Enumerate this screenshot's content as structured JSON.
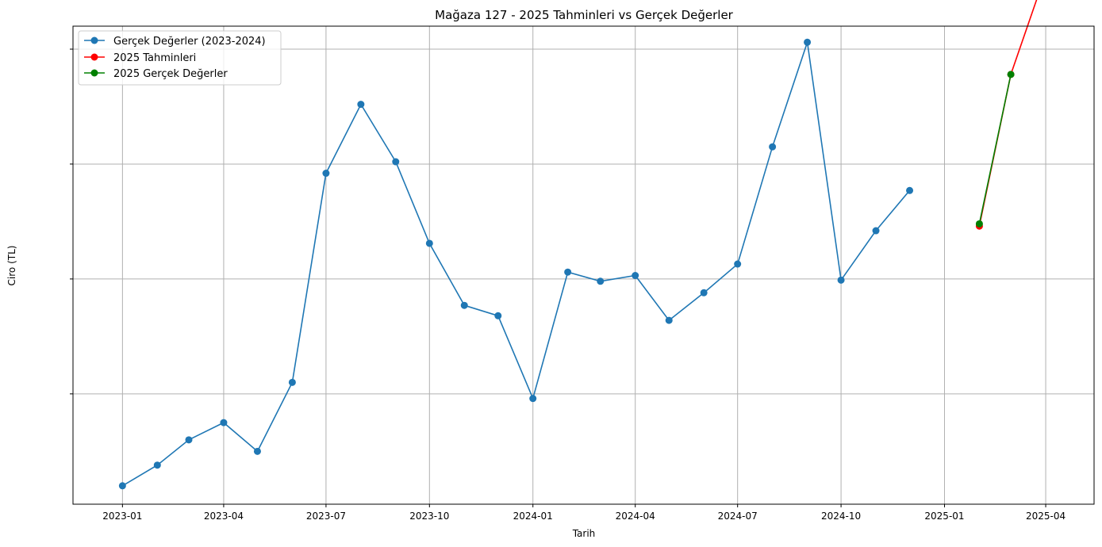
{
  "chart_data": {
    "type": "line",
    "title": "Mağaza 127 - 2025 Tahminleri vs Gerçek Değerler",
    "xlabel": "Tarih",
    "ylabel": "Ciro (TL)",
    "grid": true,
    "legend_position": "top-left",
    "x_ticks": [
      "2023-01",
      "2023-04",
      "2023-07",
      "2023-10",
      "2024-01",
      "2024-04",
      "2024-07",
      "2024-10",
      "2025-01",
      "2025-04"
    ],
    "y_tick_labels_visible": false,
    "y_range": [
      0.02,
      2.1
    ],
    "x_range": [
      "2022-11-18",
      "2025-05-14"
    ],
    "series": [
      {
        "name": "Gerçek Değerler (2023-2024)",
        "color": "#1f77b4",
        "x": [
          "2023-01-01",
          "2023-02-01",
          "2023-03-01",
          "2023-04-01",
          "2023-05-01",
          "2023-06-01",
          "2023-07-01",
          "2023-08-01",
          "2023-09-01",
          "2023-10-01",
          "2023-11-01",
          "2023-12-01",
          "2024-01-01",
          "2024-02-01",
          "2024-03-01",
          "2024-04-01",
          "2024-05-01",
          "2024-06-01",
          "2024-07-01",
          "2024-08-01",
          "2024-09-01",
          "2024-10-01",
          "2024-11-01",
          "2024-12-01"
        ],
        "y": [
          0.1,
          0.19,
          0.3,
          0.375,
          0.25,
          0.55,
          1.46,
          1.76,
          1.51,
          1.155,
          0.885,
          0.84,
          0.48,
          1.03,
          0.99,
          1.015,
          0.82,
          0.94,
          1.065,
          1.575,
          2.03,
          0.995,
          1.21,
          1.385
        ]
      },
      {
        "name": "2025 Tahminleri",
        "color": "#ff0000",
        "x": [
          "2025-02-01",
          "2025-03-01",
          "2025-04-01"
        ],
        "y": [
          1.23,
          1.89,
          2.33
        ]
      },
      {
        "name": "2025 Gerçek Değerler",
        "color": "#008000",
        "x": [
          "2025-02-01",
          "2025-03-01"
        ],
        "y": [
          1.24,
          1.89
        ]
      }
    ]
  }
}
